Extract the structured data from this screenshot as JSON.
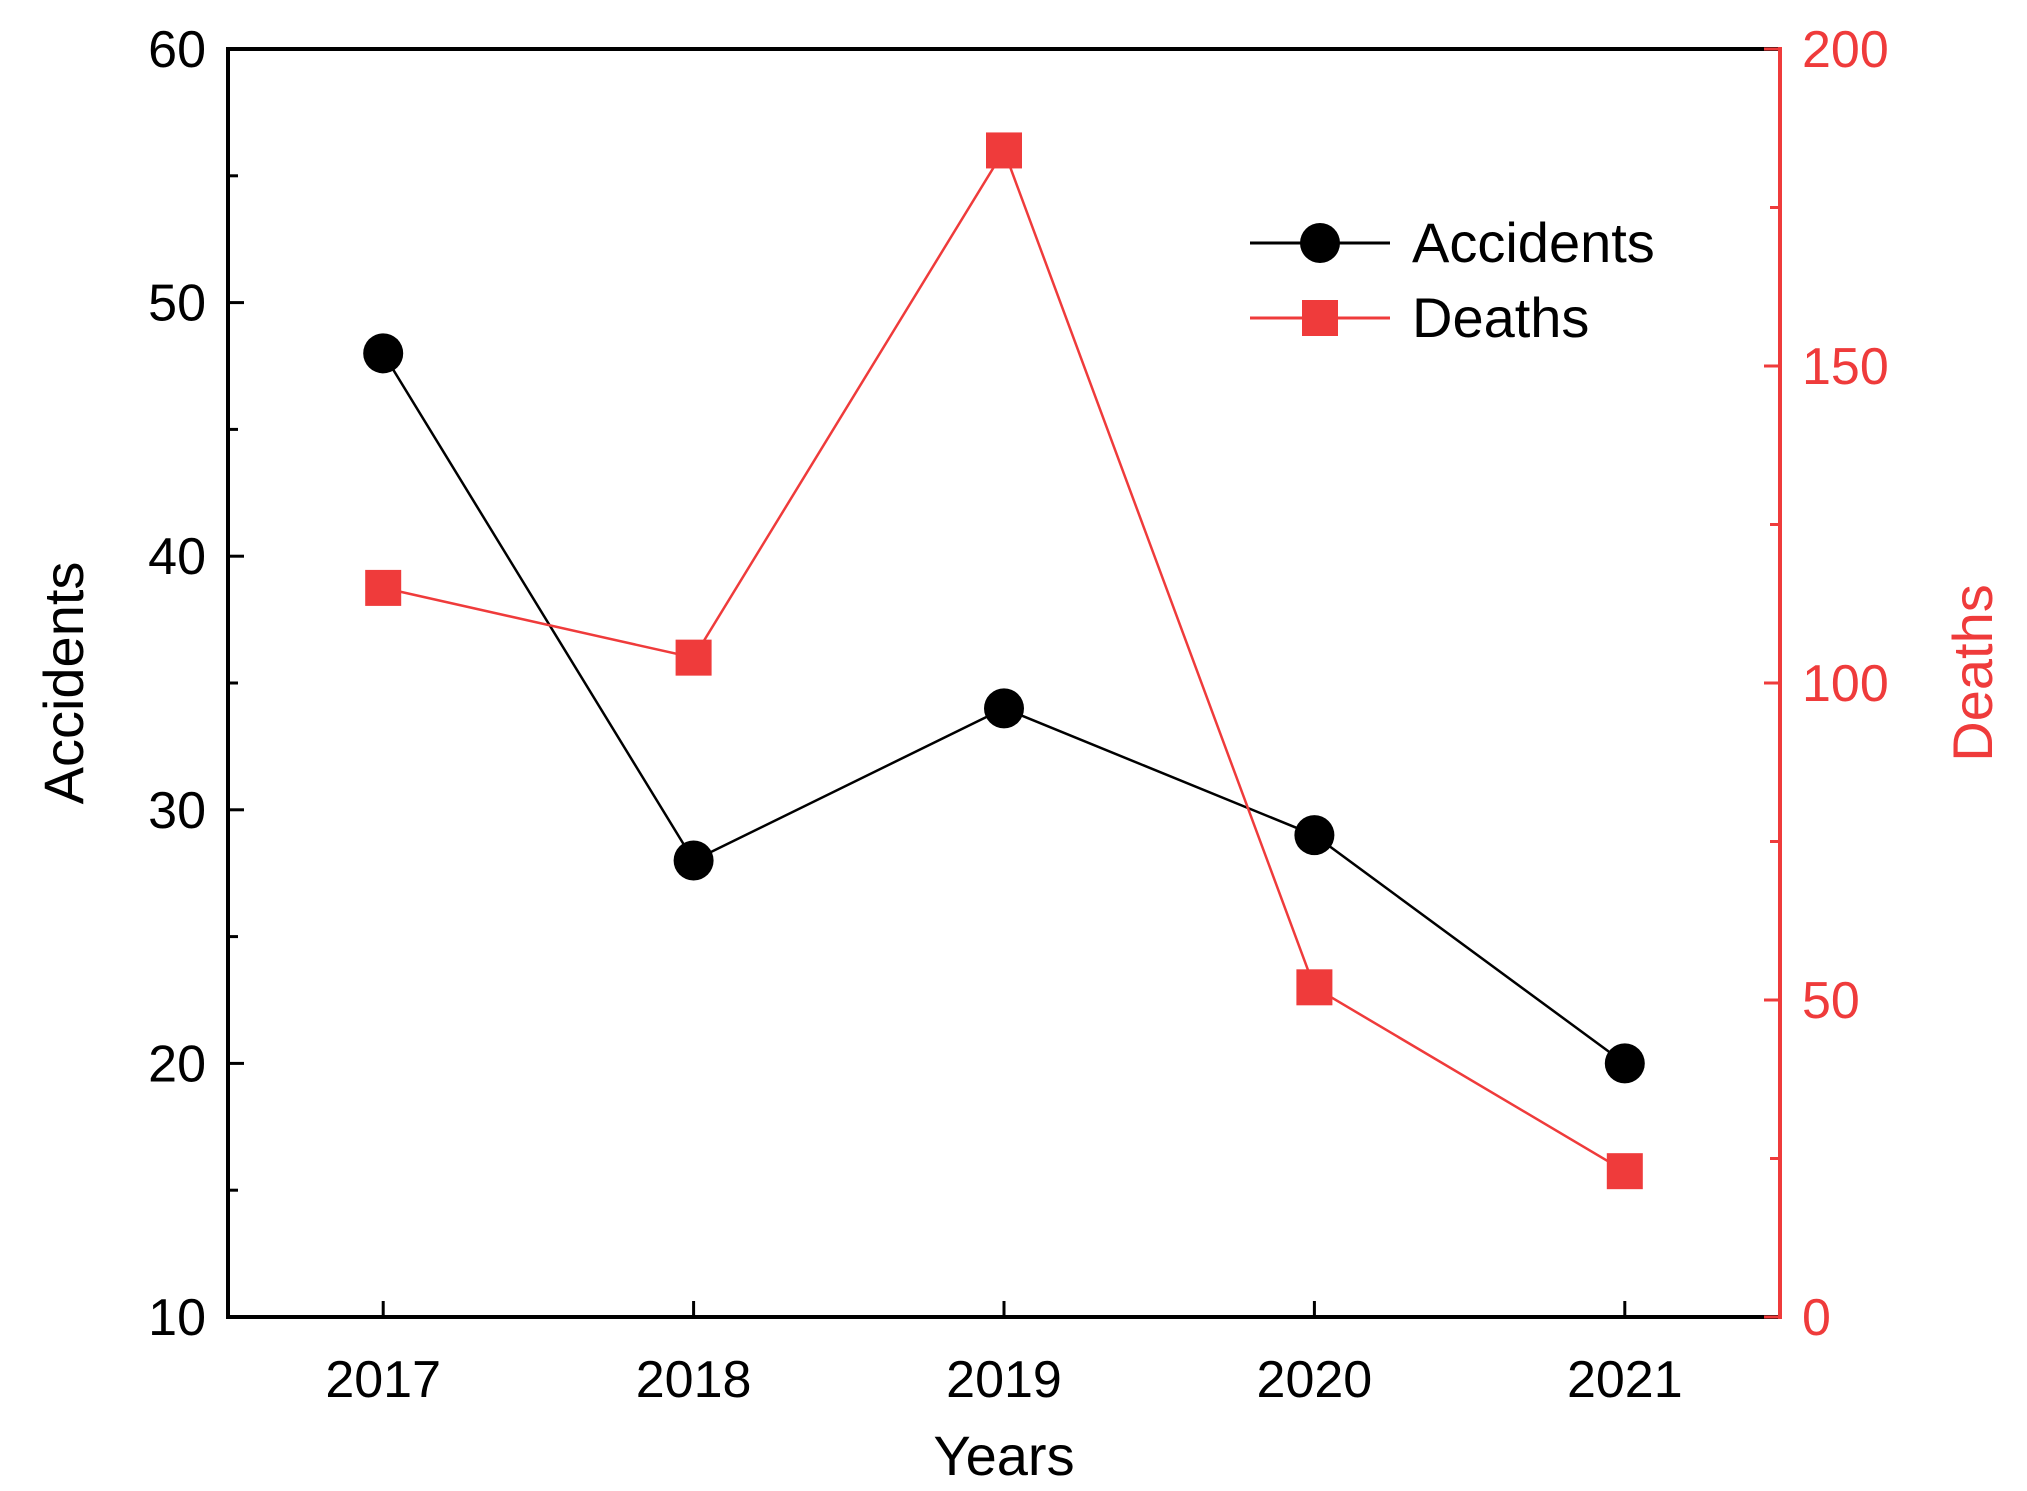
{
  "chart_data": {
    "type": "line",
    "title": "",
    "xlabel": "Years",
    "ylabel": "Accidents",
    "y2label": "Deaths",
    "categories": [
      "2017",
      "2018",
      "2019",
      "2020",
      "2021"
    ],
    "ylim": [
      10,
      60
    ],
    "y2lim": [
      0,
      200
    ],
    "yticks": [
      10,
      20,
      30,
      40,
      50,
      60
    ],
    "y2ticks": [
      0,
      50,
      100,
      150,
      200
    ],
    "grid": false,
    "legend_position": "top-right",
    "series": [
      {
        "name": "Accidents",
        "axis": "left",
        "marker": "circle",
        "color": "#000000",
        "values": [
          48,
          28,
          34,
          29,
          20
        ]
      },
      {
        "name": "Deaths",
        "axis": "right",
        "marker": "square",
        "color": "#ef3b3b",
        "values": [
          115,
          104,
          184,
          52,
          23
        ]
      }
    ]
  }
}
